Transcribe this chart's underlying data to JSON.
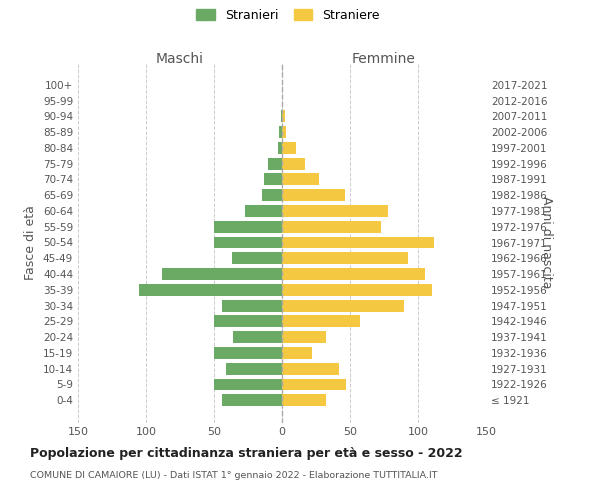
{
  "age_groups": [
    "100+",
    "95-99",
    "90-94",
    "85-89",
    "80-84",
    "75-79",
    "70-74",
    "65-69",
    "60-64",
    "55-59",
    "50-54",
    "45-49",
    "40-44",
    "35-39",
    "30-34",
    "25-29",
    "20-24",
    "15-19",
    "10-14",
    "5-9",
    "0-4"
  ],
  "birth_years": [
    "≤ 1921",
    "1922-1926",
    "1927-1931",
    "1932-1936",
    "1937-1941",
    "1942-1946",
    "1947-1951",
    "1952-1956",
    "1957-1961",
    "1962-1966",
    "1967-1971",
    "1972-1976",
    "1977-1981",
    "1982-1986",
    "1987-1991",
    "1992-1996",
    "1997-2001",
    "2002-2006",
    "2007-2011",
    "2012-2016",
    "2017-2021"
  ],
  "maschi": [
    0,
    0,
    1,
    2,
    3,
    10,
    13,
    15,
    27,
    50,
    50,
    37,
    88,
    105,
    44,
    50,
    36,
    50,
    41,
    50,
    44
  ],
  "femmine": [
    0,
    0,
    2,
    3,
    10,
    17,
    27,
    46,
    78,
    73,
    112,
    93,
    105,
    110,
    90,
    57,
    32,
    22,
    42,
    47,
    32
  ],
  "color_maschi": "#6aaa64",
  "color_femmine": "#f5c842",
  "title": "Popolazione per cittadinanza straniera per età e sesso - 2022",
  "subtitle": "COMUNE DI CAMAIORE (LU) - Dati ISTAT 1° gennaio 2022 - Elaborazione TUTTITALIA.IT",
  "xlabel_left": "Maschi",
  "xlabel_right": "Femmine",
  "ylabel_left": "Fasce di età",
  "ylabel_right": "Anni di nascita",
  "xlim": 150,
  "legend_stranieri": "Stranieri",
  "legend_straniere": "Straniere",
  "background_color": "#ffffff",
  "grid_color": "#cccccc"
}
